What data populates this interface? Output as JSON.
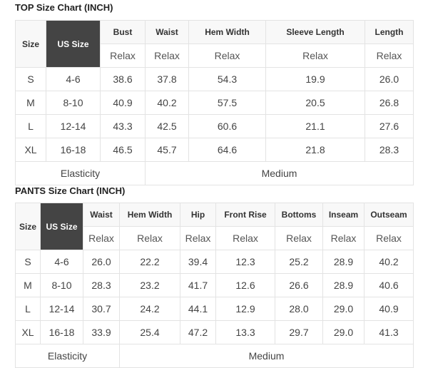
{
  "top": {
    "title": "TOP Size Chart (INCH)",
    "size_label": "Size",
    "us_size_label": "US Size",
    "columns": [
      "Bust",
      "Waist",
      "Hem Width",
      "Sleeve Length",
      "Length"
    ],
    "sub_label": "Relax",
    "rows": [
      [
        "S",
        "4-6",
        "38.6",
        "37.8",
        "54.3",
        "19.9",
        "26.0"
      ],
      [
        "M",
        "8-10",
        "40.9",
        "40.2",
        "57.5",
        "20.5",
        "26.8"
      ],
      [
        "L",
        "12-14",
        "43.3",
        "42.5",
        "60.6",
        "21.1",
        "27.6"
      ],
      [
        "XL",
        "16-18",
        "46.5",
        "45.7",
        "64.6",
        "21.8",
        "28.3"
      ]
    ],
    "elasticity_label": "Elasticity",
    "elasticity_value": "Medium"
  },
  "pants": {
    "title": "PANTS Size Chart (INCH)",
    "size_label": "Size",
    "us_size_label": "US Size",
    "columns": [
      "Waist",
      "Hem Width",
      "Hip",
      "Front Rise",
      "Bottoms",
      "Inseam",
      "Outseam"
    ],
    "sub_label": "Relax",
    "rows": [
      [
        "S",
        "4-6",
        "26.0",
        "22.2",
        "39.4",
        "12.3",
        "25.2",
        "28.9",
        "40.2"
      ],
      [
        "M",
        "8-10",
        "28.3",
        "23.2",
        "41.7",
        "12.6",
        "26.6",
        "28.9",
        "40.6"
      ],
      [
        "L",
        "12-14",
        "30.7",
        "24.2",
        "44.1",
        "12.9",
        "28.0",
        "29.0",
        "40.9"
      ],
      [
        "XL",
        "16-18",
        "33.9",
        "25.4",
        "47.2",
        "13.3",
        "29.7",
        "29.0",
        "41.3"
      ]
    ],
    "elasticity_label": "Elasticity",
    "elasticity_value": "Medium"
  }
}
